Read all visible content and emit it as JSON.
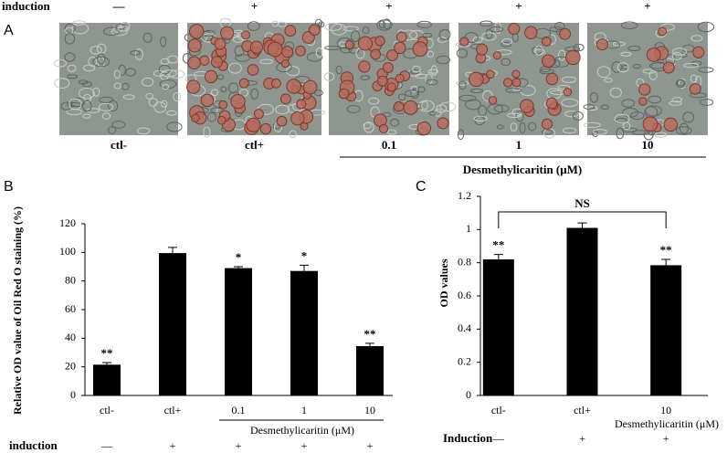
{
  "panel_a": {
    "label": "A",
    "induction_label": "induction",
    "induction": [
      "—",
      "+",
      "+",
      "+",
      "+"
    ],
    "image_labels": [
      "ctl-",
      "ctl+",
      "0.1",
      "1",
      "10"
    ],
    "group_label": "Desmethylicaritin (μM)"
  },
  "chart_data": [
    {
      "type": "bar",
      "panel_label": "B",
      "y_label": "Relative OD value of Oil Red O staining (%)",
      "categories": [
        "ctl-",
        "ctl+",
        "0.1",
        "1",
        "10"
      ],
      "values": [
        21.5,
        99.5,
        89,
        87,
        34.5
      ],
      "errors": [
        1.5,
        4,
        1,
        4,
        2
      ],
      "significance": [
        "**",
        null,
        "*",
        "*",
        "**"
      ],
      "group_label": "Desmethylicaritin (μM)",
      "induction_label": "induction",
      "induction": [
        "—",
        "+",
        "+",
        "+",
        "+"
      ],
      "ylim": [
        0,
        120
      ],
      "yticks": [
        0,
        20,
        40,
        60,
        80,
        100,
        120
      ],
      "color": "#000000"
    },
    {
      "type": "bar",
      "panel_label": "C",
      "y_label": "OD values",
      "categories": [
        "ctl-",
        "ctl+",
        "10"
      ],
      "values": [
        0.82,
        1.01,
        0.785
      ],
      "errors": [
        0.03,
        0.03,
        0.035
      ],
      "significance": [
        "**",
        null,
        "**"
      ],
      "bracket_label": "NS",
      "group_label": "Desmethylicaritin (μM)",
      "induction_label": "Induction",
      "induction": [
        "—",
        "+",
        "+"
      ],
      "ylim": [
        0,
        1.2
      ],
      "yticks": [
        0,
        0.2,
        0.4,
        0.6,
        0.8,
        1,
        1.2
      ],
      "color": "#000000"
    }
  ]
}
